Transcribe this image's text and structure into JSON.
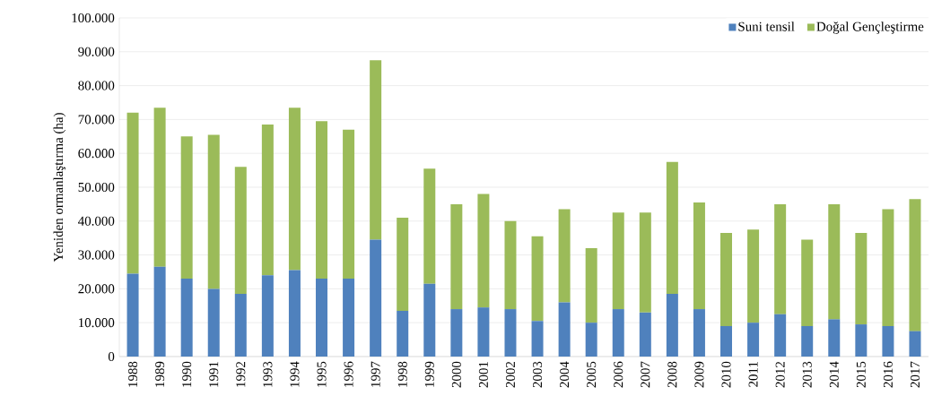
{
  "chart_data": {
    "type": "bar",
    "stacked": true,
    "ylabel": "Yeniden ormanlaştırma (ha)",
    "categories": [
      "1988",
      "1989",
      "1990",
      "1991",
      "1992",
      "1993",
      "1994",
      "1995",
      "1996",
      "1997",
      "1998",
      "1999",
      "2000",
      "2001",
      "2002",
      "2003",
      "2004",
      "2005",
      "2006",
      "2007",
      "2008",
      "2009",
      "2010",
      "2011",
      "2012",
      "2013",
      "2014",
      "2015",
      "2016",
      "2017"
    ],
    "series": [
      {
        "name": "Suni tensil",
        "color": "#4f81bd",
        "values": [
          24500,
          26500,
          23000,
          20000,
          18500,
          24000,
          25500,
          23000,
          23000,
          34500,
          13500,
          21500,
          14000,
          14500,
          14000,
          10500,
          16000,
          10000,
          14000,
          13000,
          18500,
          14000,
          9000,
          10000,
          12500,
          9000,
          11000,
          9500,
          9000,
          7500
        ]
      },
      {
        "name": "Doğal Gençleştirme",
        "color": "#9bbb59",
        "values": [
          47500,
          47000,
          42000,
          45500,
          37500,
          44500,
          48000,
          46500,
          44000,
          53000,
          27500,
          34000,
          31000,
          33500,
          26000,
          25000,
          27500,
          22000,
          28500,
          29500,
          39000,
          31500,
          27500,
          27500,
          32500,
          25500,
          34000,
          27000,
          34500,
          39000
        ]
      }
    ],
    "ylim": [
      0,
      100000
    ],
    "yticks": [
      {
        "value": 0,
        "label": "0"
      },
      {
        "value": 10000,
        "label": "10.000"
      },
      {
        "value": 20000,
        "label": "20.000"
      },
      {
        "value": 30000,
        "label": "30.000"
      },
      {
        "value": 40000,
        "label": "40.000"
      },
      {
        "value": 50000,
        "label": "50.000"
      },
      {
        "value": 60000,
        "label": "60.000"
      },
      {
        "value": 70000,
        "label": "70.000"
      },
      {
        "value": 80000,
        "label": "80.000"
      },
      {
        "value": 90000,
        "label": "90.000"
      },
      {
        "value": 100000,
        "label": "100.000"
      }
    ],
    "grid": "y",
    "legend": "top right"
  }
}
